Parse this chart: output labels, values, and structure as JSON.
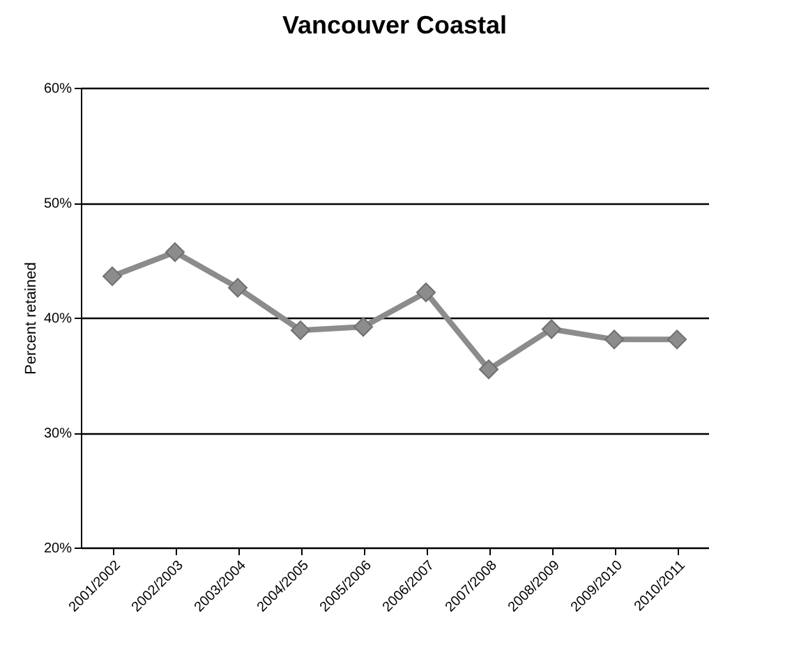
{
  "chart_data": {
    "type": "line",
    "title": "Vancouver Coastal",
    "ylabel": "Percent retained",
    "categories": [
      "2001/2002",
      "2002/2003",
      "2003/2004",
      "2004/2005",
      "2005/2006",
      "2006/2007",
      "2007/2008",
      "2008/2009",
      "2009/2010",
      "2010/2011"
    ],
    "series": [
      {
        "color": "#8c8c8c",
        "values": [
          43.6,
          45.7,
          42.6,
          38.9,
          39.2,
          42.2,
          35.5,
          39.0,
          38.1,
          38.1
        ]
      }
    ],
    "ylim": [
      20,
      60
    ],
    "yticks": [
      {
        "value": 20,
        "label": "20%"
      },
      {
        "value": 30,
        "label": "30%"
      },
      {
        "value": 40,
        "label": "40%"
      },
      {
        "value": 50,
        "label": "50%"
      },
      {
        "value": 60,
        "label": "60%"
      }
    ],
    "grid": "y",
    "marker": "diamond"
  }
}
